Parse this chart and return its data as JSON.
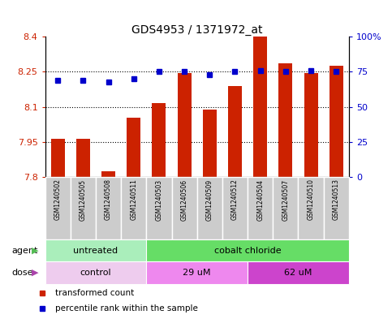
{
  "title": "GDS4953 / 1371972_at",
  "samples": [
    "GSM1240502",
    "GSM1240505",
    "GSM1240508",
    "GSM1240511",
    "GSM1240503",
    "GSM1240506",
    "GSM1240509",
    "GSM1240512",
    "GSM1240504",
    "GSM1240507",
    "GSM1240510",
    "GSM1240513"
  ],
  "bar_values": [
    7.965,
    7.965,
    7.825,
    8.055,
    8.115,
    8.245,
    8.09,
    8.19,
    8.4,
    8.285,
    8.245,
    8.275
  ],
  "percentile_values": [
    69,
    69,
    68,
    70,
    75,
    75,
    73,
    75,
    76,
    75,
    76,
    75
  ],
  "ylim_left": [
    7.8,
    8.4
  ],
  "ylim_right": [
    0,
    100
  ],
  "yticks_left": [
    7.8,
    7.95,
    8.1,
    8.25,
    8.4
  ],
  "yticks_right": [
    0,
    25,
    50,
    75,
    100
  ],
  "ytick_labels_left": [
    "7.8",
    "7.95",
    "8.1",
    "8.25",
    "8.4"
  ],
  "ytick_labels_right": [
    "0",
    "25",
    "50",
    "75",
    "100%"
  ],
  "hlines": [
    7.95,
    8.1,
    8.25
  ],
  "bar_color": "#CC2200",
  "dot_color": "#0000CC",
  "bar_baseline": 7.8,
  "agent_groups": [
    {
      "label": "untreated",
      "start": 0,
      "end": 4,
      "color": "#AAEEBB"
    },
    {
      "label": "cobalt chloride",
      "start": 4,
      "end": 12,
      "color": "#66DD66"
    }
  ],
  "dose_groups": [
    {
      "label": "control",
      "start": 0,
      "end": 4,
      "color": "#EECCEE"
    },
    {
      "label": "29 uM",
      "start": 4,
      "end": 8,
      "color": "#EE88EE"
    },
    {
      "label": "62 uM",
      "start": 8,
      "end": 12,
      "color": "#CC44CC"
    }
  ],
  "legend_items": [
    {
      "label": "transformed count",
      "color": "#CC2200",
      "marker": "s"
    },
    {
      "label": "percentile rank within the sample",
      "color": "#0000CC",
      "marker": "s"
    }
  ],
  "tick_color_left": "#CC2200",
  "tick_color_right": "#0000CC",
  "background_color": "#FFFFFF",
  "plot_bg_color": "#FFFFFF",
  "sample_box_color": "#CCCCCC",
  "agent_label": "agent",
  "dose_label": "dose",
  "agent_arrow_color": "#55BB55",
  "dose_arrow_color": "#AA44AA"
}
